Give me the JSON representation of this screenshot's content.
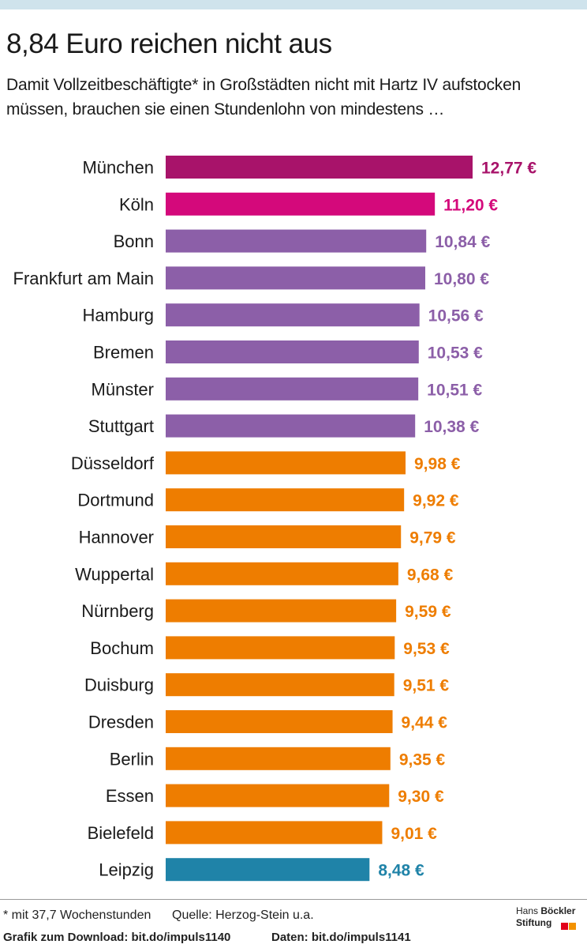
{
  "title": "8,84 Euro reichen nicht aus",
  "subtitle": "Damit Vollzeitbeschäftigte* in Großstädten nicht mit Hartz IV aufstocken müssen, brauchen sie einen Stundenlohn von mindestens …",
  "chart_data": {
    "type": "bar",
    "orientation": "horizontal",
    "title": "8,84 Euro reichen nicht aus",
    "xlabel": "",
    "ylabel": "",
    "unit": "€",
    "grid": false,
    "categories": [
      "München",
      "Köln",
      "Bonn",
      "Frankfurt am Main",
      "Hamburg",
      "Bremen",
      "Münster",
      "Stuttgart",
      "Düsseldorf",
      "Dortmund",
      "Hannover",
      "Wuppertal",
      "Nürnberg",
      "Bochum",
      "Duisburg",
      "Dresden",
      "Berlin",
      "Essen",
      "Bielefeld",
      "Leipzig"
    ],
    "values": [
      12.77,
      11.2,
      10.84,
      10.8,
      10.56,
      10.53,
      10.51,
      10.38,
      9.98,
      9.92,
      9.79,
      9.68,
      9.59,
      9.53,
      9.51,
      9.44,
      9.35,
      9.3,
      9.01,
      8.48
    ],
    "value_labels": [
      "12,77 €",
      "11,20 €",
      "10,84 €",
      "10,80 €",
      "10,56 €",
      "10,53 €",
      "10,51 €",
      "10,38 €",
      "9,98 €",
      "9,92 €",
      "9,79 €",
      "9,68 €",
      "9,59 €",
      "9,53 €",
      "9,51 €",
      "9,44 €",
      "9,35 €",
      "9,30 €",
      "9,01 €",
      "8,48 €"
    ],
    "colors": [
      "#a8136a",
      "#d4097b",
      "#8c5fa8",
      "#8c5fa8",
      "#8c5fa8",
      "#8c5fa8",
      "#8c5fa8",
      "#8c5fa8",
      "#ee7d00",
      "#ee7d00",
      "#ee7d00",
      "#ee7d00",
      "#ee7d00",
      "#ee7d00",
      "#ee7d00",
      "#ee7d00",
      "#ee7d00",
      "#ee7d00",
      "#ee7d00",
      "#1f83a8"
    ]
  },
  "footer": {
    "footnote": "* mit 37,7 Wochenstunden",
    "source": "Quelle: Herzog-Stein u.a.",
    "download": "Grafik zum Download: bit.do/impuls1140",
    "data_link": "Daten: bit.do/impuls1141"
  },
  "logo": {
    "line1_regular": "Hans",
    "line1_bold": "Böckler",
    "line2": "Stiftung",
    "colors": [
      "#e2001a",
      "#f39200"
    ]
  }
}
